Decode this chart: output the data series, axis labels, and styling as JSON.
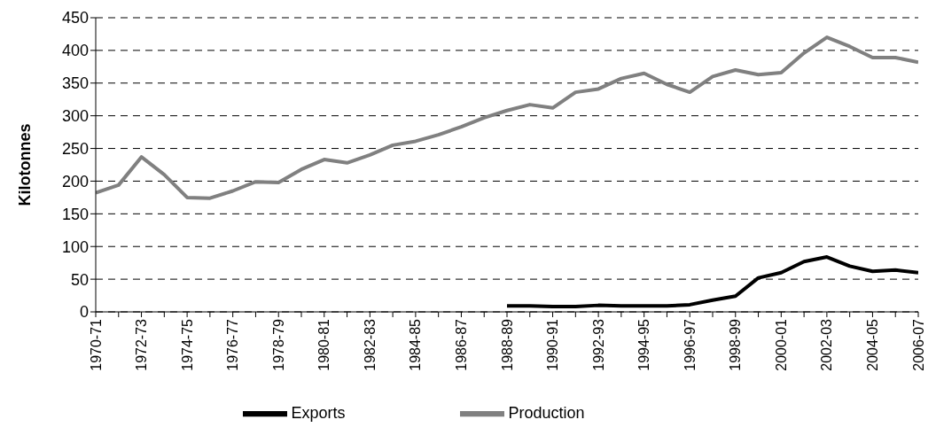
{
  "chart_data": {
    "type": "line",
    "ylabel": "Kilotonnes",
    "categories": [
      "1970-71",
      null,
      "1972-73",
      null,
      "1974-75",
      null,
      "1976-77",
      null,
      "1978-79",
      null,
      "1980-81",
      null,
      "1982-83",
      null,
      "1984-85",
      null,
      "1986-87",
      null,
      "1988-89",
      null,
      "1990-91",
      null,
      "1992-93",
      null,
      "1994-95",
      null,
      "1996-97",
      null,
      "1998-99",
      null,
      "2000-01",
      null,
      "2002-03",
      null,
      "2004-05",
      null,
      "2006-07"
    ],
    "series": [
      {
        "name": "Exports",
        "color": "#000000",
        "values": [
          null,
          null,
          null,
          null,
          null,
          null,
          null,
          null,
          null,
          null,
          null,
          null,
          null,
          null,
          null,
          null,
          null,
          null,
          9,
          9,
          8,
          8,
          10,
          9,
          9,
          9,
          11,
          18,
          24,
          52,
          60,
          77,
          84,
          70,
          62,
          64,
          60
        ]
      },
      {
        "name": "Production",
        "color": "#808080",
        "values": [
          182,
          194,
          237,
          210,
          175,
          174,
          185,
          199,
          198,
          218,
          233,
          228,
          240,
          255,
          261,
          271,
          283,
          297,
          308,
          317,
          312,
          336,
          341,
          357,
          365,
          348,
          336,
          360,
          370,
          363,
          366,
          396,
          420,
          406,
          389,
          389,
          382
        ]
      }
    ],
    "ylim": [
      0,
      450
    ],
    "yticks": [
      0,
      50,
      100,
      150,
      200,
      250,
      300,
      350,
      400,
      450
    ],
    "grid": "y",
    "legend": "bottom",
    "marker": "none",
    "line_style": "solid"
  }
}
